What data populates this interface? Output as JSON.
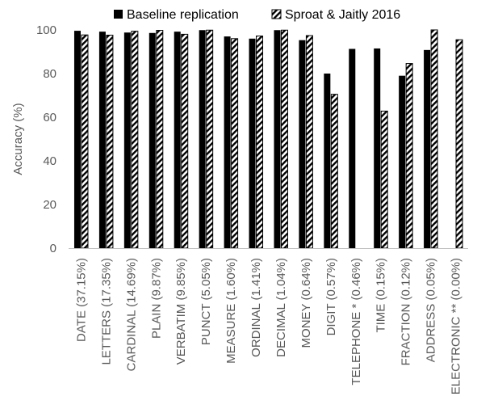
{
  "chart_data": {
    "type": "bar",
    "ylabel": "Accuracy (%)",
    "xlabel": "",
    "ylim": [
      0,
      100
    ],
    "yticks": [
      "0",
      "20",
      "40",
      "60",
      "80",
      "100"
    ],
    "grid": false,
    "legend_position": "top",
    "categories": [
      "DATE (37.15%)",
      "LETTERS (17.35%)",
      "CARDINAL (14.69%)",
      "PLAIN (9.87%)",
      "VERBATIM (9.85%)",
      "PUNCT (5.05%)",
      "MEASURE (1.60%)",
      "ORDINAL (1.41%)",
      "DECIMAL (1.04%)",
      "MONEY (0.64%)",
      "DIGIT (0.57%)",
      "TELEPHONE * (0.46%)",
      "TIME (0.15%)",
      "FRACTION (0.12%)",
      "ADDRESS (0.05%)",
      "ELECTRONIC ** (0.00%)"
    ],
    "series": [
      {
        "name": "Baseline replication",
        "fill": "solid",
        "color": "#000000",
        "values": [
          99.6,
          99.2,
          98.8,
          98.6,
          99.2,
          99.9,
          97.0,
          96.0,
          99.9,
          95.3,
          80.0,
          91.3,
          91.5,
          79.0,
          90.8,
          null
        ]
      },
      {
        "name": "Sproat & Jaitly 2016",
        "fill": "hatched",
        "color": "#000000",
        "values": [
          97.7,
          97.6,
          99.4,
          99.8,
          98.0,
          99.9,
          96.0,
          97.2,
          99.9,
          97.4,
          70.5,
          null,
          62.8,
          84.6,
          100.0,
          95.5
        ]
      }
    ]
  }
}
